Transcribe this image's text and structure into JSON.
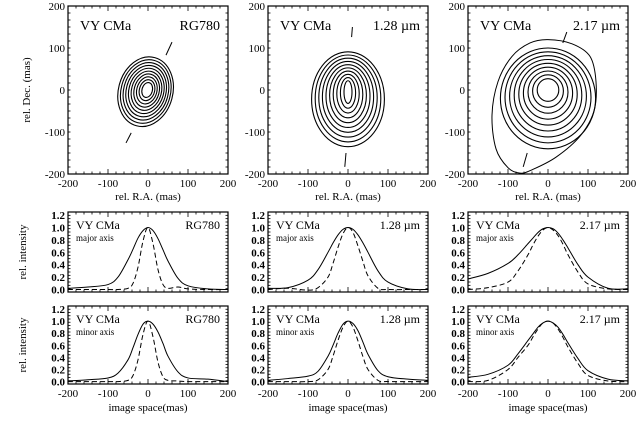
{
  "chart_data": {
    "type": "figure-grid",
    "object_label": "VY CMa",
    "contour_panels": [
      {
        "type": "contour",
        "band": "RG780",
        "xlabel": "rel. R.A. (mas)",
        "ylabel": "rel. Dec. (mas)",
        "xlim": [
          -200,
          200
        ],
        "ylim": [
          -200,
          200
        ],
        "xticks": [
          "-200",
          "-100",
          "0",
          "100",
          "200"
        ],
        "yticks": [
          "-200",
          "-100",
          "0",
          "100",
          "200"
        ],
        "levels": 10,
        "outer": {
          "cx": -6,
          "cy": -4,
          "rx": 68,
          "ry": 84,
          "angle_deg": 15
        },
        "inner": {
          "cx": -2,
          "cy": 0,
          "rx": 13,
          "ry": 18,
          "angle_deg": 15
        },
        "axis_markers": [
          [
            [
              45,
              83
            ],
            [
              60,
              114
            ]
          ],
          [
            [
              -55,
              -126
            ],
            [
              -42,
              -102
            ]
          ]
        ]
      },
      {
        "type": "contour",
        "band": "1.28 µm",
        "xlabel": "rel. R.A. (mas)",
        "ylabel": "",
        "xlim": [
          -200,
          200
        ],
        "ylim": [
          -200,
          200
        ],
        "xticks": [
          "-200",
          "-100",
          "0",
          "100",
          "200"
        ],
        "yticks": [
          "-200",
          "-100",
          "0",
          "100",
          "200"
        ],
        "levels": 10,
        "outer": {
          "cx": 0,
          "cy": -22,
          "rx": 91,
          "ry": 113,
          "angle_deg": 0
        },
        "inner": {
          "cx": 0,
          "cy": -5,
          "rx": 10,
          "ry": 27,
          "angle_deg": 0
        },
        "axis_markers": [
          [
            [
              9,
              126
            ],
            [
              11,
              150
            ]
          ],
          [
            [
              -5,
              -150
            ],
            [
              -8,
              -183
            ]
          ]
        ]
      },
      {
        "type": "contour",
        "band": "2.17 µm",
        "xlabel": "rel. R.A. (mas)",
        "ylabel": "",
        "xlim": [
          -200,
          200
        ],
        "ylim": [
          -200,
          200
        ],
        "xticks": [
          "-200",
          "-100",
          "0",
          "100",
          "200"
        ],
        "yticks": [
          "-200",
          "-100",
          "0",
          "100",
          "200"
        ],
        "levels": 9,
        "outer_contour": [
          [
            0,
            120
          ],
          [
            60,
            110
          ],
          [
            105,
            80
          ],
          [
            120,
            20
          ],
          [
            115,
            -50
          ],
          [
            80,
            -110
          ],
          [
            20,
            -160
          ],
          [
            -40,
            -190
          ],
          [
            -70,
            -198
          ],
          [
            -100,
            -185
          ],
          [
            -130,
            -140
          ],
          [
            -140,
            -60
          ],
          [
            -125,
            20
          ],
          [
            -90,
            80
          ],
          [
            -45,
            112
          ]
        ],
        "outer": {
          "cx": 0,
          "cy": -20,
          "rx": 119,
          "ry": 120,
          "angle_deg": 0
        },
        "inner": {
          "cx": 0,
          "cy": 0,
          "rx": 27,
          "ry": 27,
          "angle_deg": 0
        },
        "axis_markers": [
          [
            [
              -62,
              -183
            ],
            [
              -52,
              -150
            ]
          ],
          [
            [
              37,
              112
            ],
            [
              47,
              138
            ]
          ]
        ]
      }
    ],
    "profile_panels": {
      "type": "line",
      "xlabel": "image space(mas)",
      "ylabel": "rel. intensity",
      "xlim": [
        -200,
        200
      ],
      "ylim": [
        -0.04,
        1.25
      ],
      "xticks": [
        "-200",
        "-100",
        "0",
        "100",
        "200"
      ],
      "yticks": [
        "0.0",
        "0.2",
        "0.4",
        "0.6",
        "0.8",
        "1.0",
        "1.2"
      ],
      "x": [
        -200,
        -150,
        -100,
        -75,
        -50,
        -37.5,
        -25,
        -12.5,
        0,
        12.5,
        25,
        37.5,
        50,
        75,
        100,
        150,
        200
      ],
      "rows": [
        {
          "axis_label": "major axis",
          "panels": [
            {
              "band": "RG780",
              "solid": [
                0.02,
                0.04,
                0.08,
                0.2,
                0.48,
                0.65,
                0.83,
                0.95,
                1.0,
                0.95,
                0.82,
                0.64,
                0.46,
                0.18,
                0.06,
                0.01,
                0.0
              ],
              "dashed": [
                0.0,
                0.0,
                0.0,
                0.0,
                0.02,
                0.1,
                0.36,
                0.78,
                1.0,
                0.74,
                0.32,
                0.08,
                0.02,
                0.04,
                0.01,
                0.0,
                0.0
              ]
            },
            {
              "band": "1.28 µm",
              "solid": [
                0.02,
                0.03,
                0.15,
                0.32,
                0.6,
                0.75,
                0.88,
                0.97,
                1.0,
                0.97,
                0.88,
                0.75,
                0.6,
                0.3,
                0.12,
                0.01,
                0.0
              ],
              "dashed": [
                0.0,
                0.02,
                -0.01,
                0.03,
                0.2,
                0.42,
                0.68,
                0.9,
                1.0,
                0.92,
                0.7,
                0.45,
                0.22,
                0.02,
                0.0,
                0.0,
                0.0
              ]
            },
            {
              "band": "2.17 µm",
              "solid": [
                0.17,
                0.26,
                0.42,
                0.56,
                0.74,
                0.83,
                0.92,
                0.98,
                1.0,
                0.98,
                0.91,
                0.8,
                0.67,
                0.4,
                0.2,
                0.02,
                0.01
              ],
              "dashed": [
                0.0,
                0.03,
                0.12,
                0.3,
                0.56,
                0.72,
                0.86,
                0.96,
                1.0,
                0.96,
                0.87,
                0.73,
                0.56,
                0.28,
                0.09,
                0.01,
                0.0
              ]
            }
          ]
        },
        {
          "axis_label": "minor axis",
          "panels": [
            {
              "band": "RG780",
              "solid": [
                0.01,
                0.03,
                0.06,
                0.14,
                0.36,
                0.56,
                0.78,
                0.95,
                1.0,
                0.95,
                0.82,
                0.63,
                0.42,
                0.16,
                0.06,
                0.04,
                0.0
              ],
              "dashed": [
                0.0,
                0.0,
                0.0,
                0.0,
                0.02,
                0.1,
                0.36,
                0.78,
                1.0,
                0.74,
                0.32,
                0.08,
                0.02,
                0.01,
                0.0,
                0.0,
                0.0
              ]
            },
            {
              "band": "1.28 µm",
              "solid": [
                0.02,
                0.05,
                0.09,
                0.17,
                0.42,
                0.6,
                0.8,
                0.95,
                1.0,
                0.96,
                0.84,
                0.65,
                0.45,
                0.18,
                0.08,
                0.04,
                0.02
              ],
              "dashed": [
                0.0,
                0.0,
                0.0,
                0.03,
                0.2,
                0.42,
                0.68,
                0.9,
                1.0,
                0.9,
                0.67,
                0.41,
                0.2,
                0.02,
                0.0,
                0.0,
                0.0
              ]
            },
            {
              "band": "2.17 µm",
              "solid": [
                0.07,
                0.12,
                0.27,
                0.46,
                0.68,
                0.79,
                0.9,
                0.97,
                1.0,
                0.97,
                0.9,
                0.78,
                0.64,
                0.38,
                0.18,
                0.04,
                0.01
              ],
              "dashed": [
                0.0,
                0.02,
                0.2,
                0.4,
                0.6,
                0.74,
                0.87,
                0.97,
                1.0,
                0.97,
                0.87,
                0.73,
                0.57,
                0.3,
                0.1,
                0.01,
                0.0
              ]
            }
          ]
        }
      ]
    }
  }
}
